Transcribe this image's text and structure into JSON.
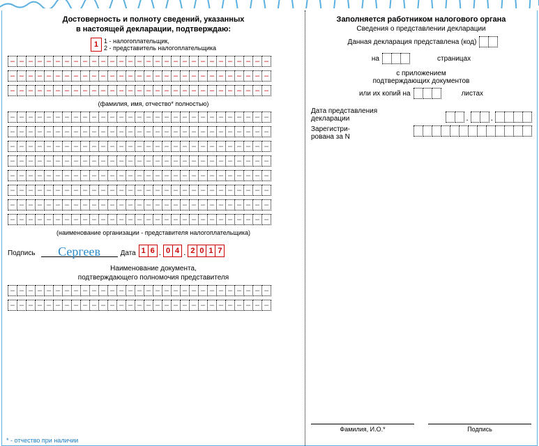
{
  "left": {
    "title_l1": "Достоверность и полноту сведений, указанных",
    "title_l2": "в настоящей декларации, подтверждаю:",
    "declarant_code": "1",
    "legend_1": "1 - налогоплательщик,",
    "legend_2": "2 - представитель налогоплательщика",
    "fio_caption": "(фамилия, имя, отчество* полностью)",
    "org_caption": "(наименование организации - представителя налогоплательщика)",
    "sign_label": "Подпись",
    "signature_text": "Сергеев",
    "date_label": "Дата",
    "date_d1": "1",
    "date_d2": "6",
    "date_m1": "0",
    "date_m2": "4",
    "date_y1": "2",
    "date_y2": "0",
    "date_y3": "1",
    "date_y4": "7",
    "doc_title_l1": "Наименование документа,",
    "doc_title_l2": "подтверждающего полномочия представителя",
    "footnote": "* - отчество при наличии"
  },
  "right": {
    "title": "Заполняется работником налогового органа",
    "sub1": "Сведения о представлении декларации",
    "sub2": "Данная декларация представлена (код)",
    "pages_on": "на",
    "pages_unit": "страницах",
    "att_l1": "с приложением",
    "att_l2": "подтверждающих документов",
    "att_l3": "или их копий на",
    "att_unit": "листах",
    "date_label_l1": "Дата представления",
    "date_label_l2": "декларации",
    "reg_l1": "Зарегистри-",
    "reg_l2": "рована за N",
    "fio_label": "Фамилия, И.О.*",
    "sign_label": "Подпись"
  },
  "style": {
    "dash_color": "#c00",
    "signature_color": "#2b8bcb",
    "torn_color": "#5bb0e0"
  }
}
